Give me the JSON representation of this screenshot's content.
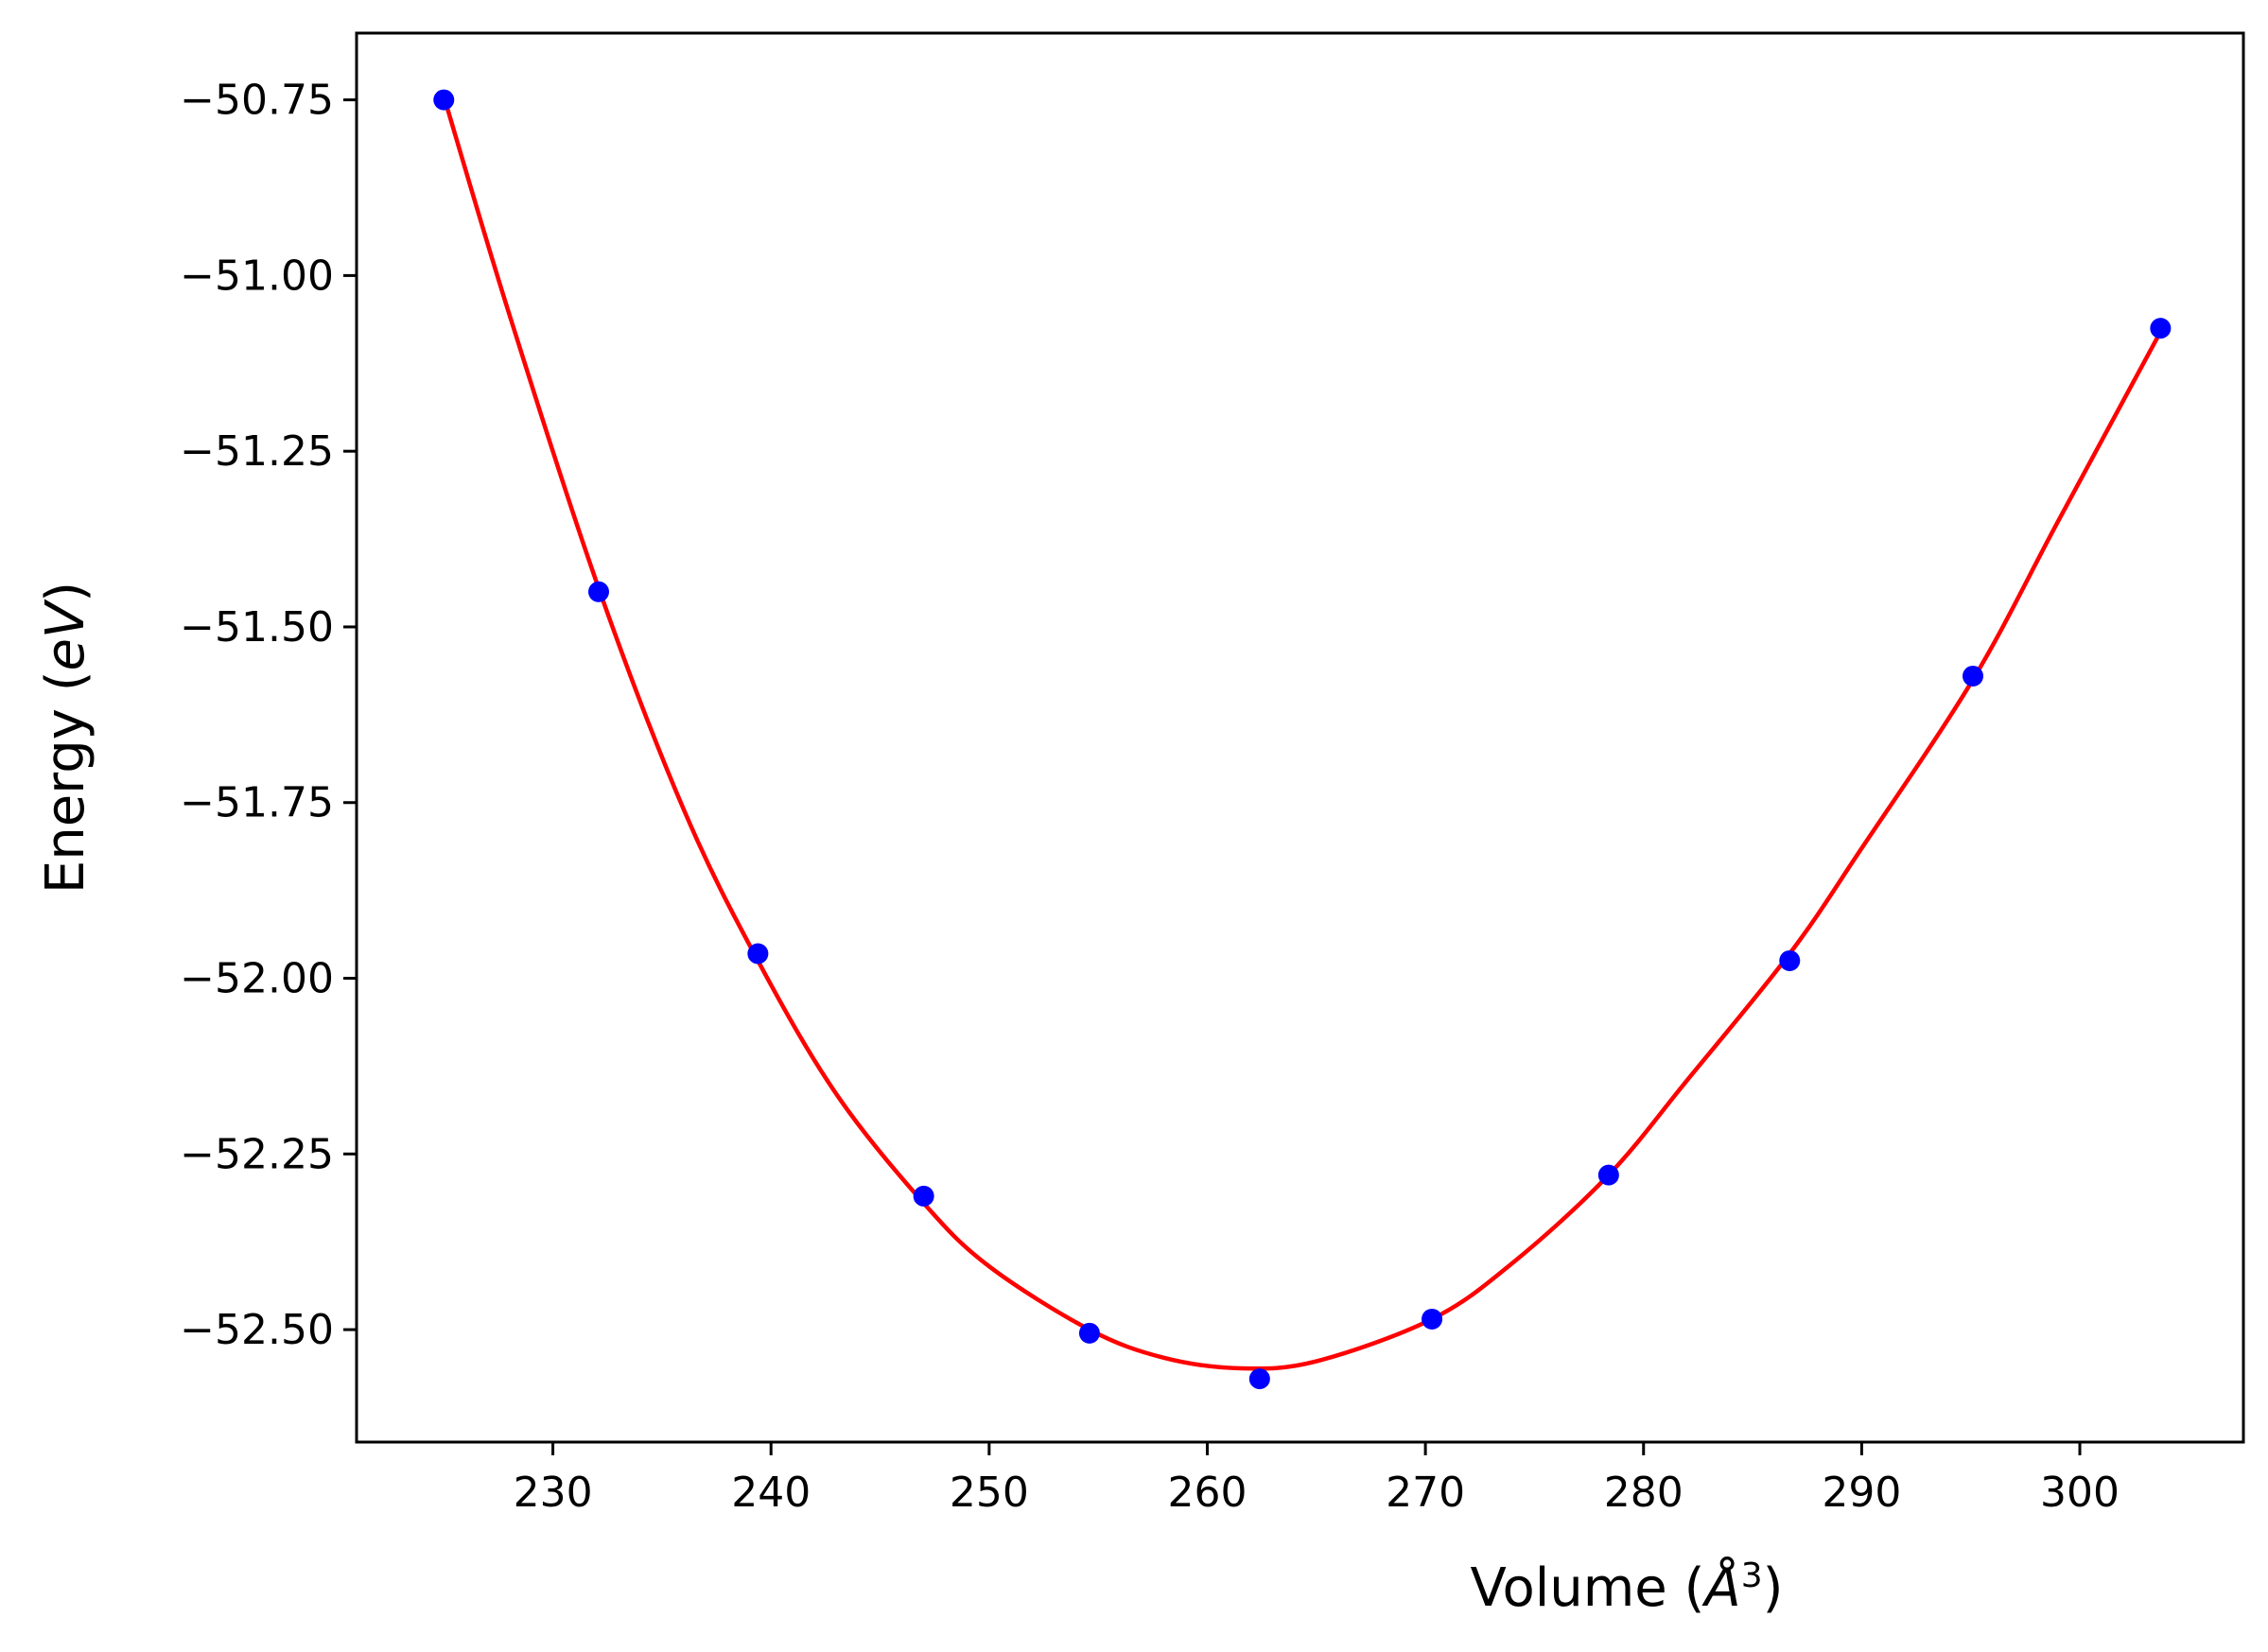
{
  "chart_data": {
    "type": "scatter",
    "xlabel_text": "Volume (",
    "xlabel_unit": "Å",
    "xlabel_exp": "3",
    "xlabel_close": ")",
    "ylabel_text": "Energy (",
    "ylabel_unit": "eV",
    "ylabel_close": ")",
    "xlim": [
      221,
      307.5
    ],
    "ylim": [
      -52.66,
      -50.655
    ],
    "x_ticks": [
      230,
      240,
      250,
      260,
      270,
      280,
      290,
      300
    ],
    "x_tick_labels": [
      "230",
      "240",
      "250",
      "260",
      "270",
      "280",
      "290",
      "300"
    ],
    "y_ticks": [
      -50.75,
      -51.0,
      -51.25,
      -51.5,
      -51.75,
      -52.0,
      -52.25,
      -52.5
    ],
    "y_tick_labels": [
      "−50.75",
      "−51.00",
      "−51.25",
      "−51.50",
      "−51.75",
      "−52.00",
      "−52.25",
      "−52.50"
    ],
    "grid": false,
    "series": [
      {
        "kind": "points",
        "color": "#0000ff",
        "x": [
          225.0,
          232.1,
          239.4,
          247.0,
          254.6,
          262.4,
          270.3,
          278.4,
          286.7,
          295.1,
          303.7
        ],
        "y": [
          -50.75,
          -51.45,
          -51.965,
          -52.31,
          -52.505,
          -52.57,
          -52.485,
          -52.28,
          -51.975,
          -51.57,
          -51.075
        ]
      },
      {
        "kind": "fit-curve",
        "color": "#ff0000",
        "x": [
          225.0,
          228.0,
          232.1,
          236.0,
          239.4,
          243.0,
          247.0,
          250.0,
          254.6,
          258.0,
          261.5,
          265.0,
          270.3,
          274.0,
          278.4,
          282.0,
          286.7,
          290.0,
          295.1,
          299.0,
          303.7
        ],
        "y": [
          -50.745,
          -51.055,
          -51.445,
          -51.76,
          -51.975,
          -52.165,
          -52.32,
          -52.41,
          -52.5,
          -52.54,
          -52.555,
          -52.545,
          -52.485,
          -52.405,
          -52.28,
          -52.145,
          -51.965,
          -51.815,
          -51.575,
          -51.35,
          -51.08
        ]
      }
    ]
  }
}
